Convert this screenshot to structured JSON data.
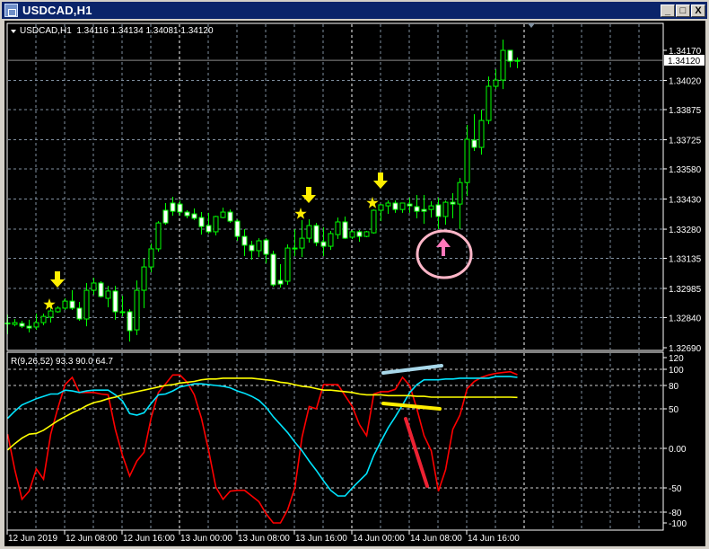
{
  "window": {
    "title": "USDCAD,H1",
    "buttons": {
      "minimize": "_",
      "maximize": "□",
      "close": "X"
    }
  },
  "main_chart": {
    "header": "USDCAD,H1  1.34116 1.34134 1.34081 1.34120",
    "symbol": "USDCAD",
    "timeframe": "H1",
    "current_price_label": "1.34120",
    "price_ticks": [
      "1.34170",
      "1.34020",
      "1.33875",
      "1.33725",
      "1.33580",
      "1.33430",
      "1.33280",
      "1.33135",
      "1.32985",
      "1.32840",
      "1.32690"
    ],
    "colors": {
      "background": "#000000",
      "bull_outline": "#00ff00",
      "bear_body": "#ffffff",
      "grid": "#8090a0",
      "arrow": "#ffee00",
      "star": "#ffee00",
      "up_arrow": "#ff77bb",
      "circle": "#ffb6c8"
    }
  },
  "chart_data": [
    {
      "type": "candlestick",
      "title": "USDCAD,H1",
      "x_start": "12 Jun 2019 00:00",
      "bar_interval": "1h",
      "ylim": [
        1.3269,
        1.3417
      ],
      "grid": true,
      "ohlc_format": [
        "open",
        "high",
        "low",
        "close"
      ],
      "candles": [
        [
          1.32811,
          1.32855,
          1.32757,
          1.32813
        ],
        [
          1.32806,
          1.32833,
          1.32797,
          1.32815
        ],
        [
          1.32811,
          1.32824,
          1.32788,
          1.32797
        ],
        [
          1.32797,
          1.32829,
          1.32766,
          1.32788
        ],
        [
          1.32793,
          1.3286,
          1.32779,
          1.32815
        ],
        [
          1.32815,
          1.3286,
          1.32802,
          1.32846
        ],
        [
          1.32842,
          1.32914,
          1.32815,
          1.32873
        ],
        [
          1.32869,
          1.32896,
          1.32864,
          1.32887
        ],
        [
          1.32887,
          1.32936,
          1.32878,
          1.32922
        ],
        [
          1.32922,
          1.32976,
          1.32878,
          1.32887
        ],
        [
          1.32887,
          1.32918,
          1.32824,
          1.32833
        ],
        [
          1.32833,
          1.33012,
          1.32797,
          1.32976
        ],
        [
          1.32976,
          1.33039,
          1.32954,
          1.33012
        ],
        [
          1.33012,
          1.33021,
          1.3294,
          1.32945
        ],
        [
          1.32936,
          1.32998,
          1.32891,
          1.32972
        ],
        [
          1.32972,
          1.32998,
          1.32829,
          1.32869
        ],
        [
          1.32869,
          1.32949,
          1.32846,
          1.32869
        ],
        [
          1.32869,
          1.32882,
          1.32721,
          1.32775
        ],
        [
          1.32779,
          1.33025,
          1.32753,
          1.32976
        ],
        [
          1.32976,
          1.33133,
          1.32887,
          1.33092
        ],
        [
          1.33092,
          1.33209,
          1.33065,
          1.33182
        ],
        [
          1.33182,
          1.3332,
          1.33168,
          1.33311
        ],
        [
          1.33374,
          1.3341,
          1.33302,
          1.33311
        ],
        [
          1.3341,
          1.33441,
          1.33347,
          1.33369
        ],
        [
          1.33405,
          1.33423,
          1.33347,
          1.33365
        ],
        [
          1.33365,
          1.33374,
          1.33334,
          1.33347
        ],
        [
          1.33356,
          1.33383,
          1.33325,
          1.33334
        ],
        [
          1.33338,
          1.33365,
          1.33253,
          1.33293
        ],
        [
          1.33298,
          1.33361,
          1.33258,
          1.33267
        ],
        [
          1.33267,
          1.33347,
          1.33249,
          1.33343
        ],
        [
          1.33338,
          1.33387,
          1.33334,
          1.33365
        ],
        [
          1.33365,
          1.33378,
          1.33311,
          1.3332
        ],
        [
          1.3332,
          1.33329,
          1.33222,
          1.33244
        ],
        [
          1.33244,
          1.3328,
          1.33146,
          1.332
        ],
        [
          1.332,
          1.33222,
          1.33128,
          1.33173
        ],
        [
          1.33173,
          1.33235,
          1.33141,
          1.33222
        ],
        [
          1.33226,
          1.33235,
          1.3311,
          1.33155
        ],
        [
          1.33155,
          1.33173,
          1.32994,
          1.33003
        ],
        [
          1.33025,
          1.33106,
          1.32989,
          1.33007
        ],
        [
          1.33021,
          1.33204,
          1.33003,
          1.33186
        ],
        [
          1.33186,
          1.3328,
          1.33146,
          1.33186
        ],
        [
          1.33186,
          1.33325,
          1.33141,
          1.33235
        ],
        [
          1.33235,
          1.33329,
          1.33213,
          1.33298
        ],
        [
          1.33298,
          1.33311,
          1.33195,
          1.33213
        ],
        [
          1.33217,
          1.33289,
          1.33146,
          1.33195
        ],
        [
          1.33195,
          1.33271,
          1.33177,
          1.33258
        ],
        [
          1.33253,
          1.33338,
          1.33231,
          1.33316
        ],
        [
          1.33316,
          1.33343,
          1.33231,
          1.33235
        ],
        [
          1.3324,
          1.33276,
          1.33231,
          1.33267
        ],
        [
          1.33267,
          1.33276,
          1.33217,
          1.33244
        ],
        [
          1.33244,
          1.33271,
          1.3324,
          1.33267
        ],
        [
          1.33262,
          1.33378,
          1.33258,
          1.33374
        ],
        [
          1.33374,
          1.33405,
          1.3332,
          1.33401
        ],
        [
          1.33396,
          1.33423,
          1.33356,
          1.3341
        ],
        [
          1.3341,
          1.33423,
          1.33361,
          1.33378
        ],
        [
          1.33378,
          1.3341,
          1.33361,
          1.3341
        ],
        [
          1.33405,
          1.33436,
          1.33361,
          1.33396
        ],
        [
          1.33392,
          1.3345,
          1.33334,
          1.33369
        ],
        [
          1.33378,
          1.3345,
          1.33307,
          1.33369
        ],
        [
          1.33378,
          1.33419,
          1.33338,
          1.33396
        ],
        [
          1.33401,
          1.33436,
          1.3328,
          1.33343
        ],
        [
          1.33343,
          1.33423,
          1.33302,
          1.33414
        ],
        [
          1.33414,
          1.33459,
          1.33334,
          1.33405
        ],
        [
          1.33405,
          1.33535,
          1.3328,
          1.33512
        ],
        [
          1.33512,
          1.33799,
          1.33445,
          1.33727
        ],
        [
          1.33723,
          1.33852,
          1.33669,
          1.33687
        ],
        [
          1.33687,
          1.33875,
          1.33651,
          1.33821
        ],
        [
          1.33821,
          1.3404,
          1.33803,
          1.33991
        ],
        [
          1.33991,
          1.34076,
          1.33977,
          1.34022
        ],
        [
          1.34022,
          1.34223,
          1.33977,
          1.3417
        ],
        [
          1.3417,
          1.3417,
          1.34085,
          1.34116
        ],
        [
          1.34116,
          1.34134,
          1.34081,
          1.3412
        ]
      ]
    },
    {
      "type": "line",
      "title": "R(9,26,52) 93.3 90.0 64.7",
      "x_start": "12 Jun 2019 00:00",
      "bar_interval": "1h",
      "ylim": [
        -100,
        120
      ],
      "y_ticks": [
        "120",
        "100",
        "80",
        "50",
        "0.00",
        "-50",
        "-80",
        "-100"
      ],
      "x_tick_labels": [
        "12 Jun 2019",
        "12 Jun 08:00",
        "12 Jun 16:00",
        "13 Jun 00:00",
        "13 Jun 08:00",
        "13 Jun 16:00",
        "14 Jun 00:00",
        "14 Jun 08:00",
        "14 Jun 16:00"
      ],
      "grid": true,
      "series": [
        {
          "color": "#ff0000",
          "values": [
            18,
            -27,
            -64,
            -54,
            -26,
            -39,
            18,
            51,
            81,
            90,
            71,
            71,
            71,
            69,
            68,
            24,
            -9,
            -35,
            -16,
            -5,
            39,
            71,
            82,
            93,
            93,
            84,
            68,
            38,
            -3,
            -49,
            -64,
            -54,
            -53,
            -53,
            -60,
            -67,
            -83,
            -100,
            -100,
            -77,
            -50,
            14,
            53,
            50,
            81,
            81,
            81,
            67,
            53,
            30,
            16,
            69,
            72,
            72,
            75,
            90,
            80,
            50,
            16,
            -3,
            -54,
            -27,
            24,
            42,
            76,
            85,
            90,
            93,
            95,
            96,
            97,
            93.3
          ]
        },
        {
          "color": "#00e5ff",
          "values": [
            38,
            47,
            55,
            59,
            63,
            66,
            69,
            69,
            74,
            73,
            71,
            73,
            74,
            74,
            74,
            68,
            60,
            44,
            42,
            45,
            57,
            68,
            69,
            73,
            78,
            80,
            82,
            82,
            81,
            80,
            79,
            77,
            73,
            70,
            66,
            61,
            52,
            40,
            30,
            20,
            8,
            -3,
            -16,
            -28,
            -41,
            -53,
            -60,
            -60,
            -50,
            -41,
            -32,
            -9,
            9,
            26,
            40,
            55,
            71,
            81,
            87,
            87,
            87,
            88,
            88,
            89,
            89,
            89,
            89,
            89,
            91,
            91,
            91,
            90.0
          ]
        },
        {
          "color": "#ffff00",
          "values": [
            -2,
            6,
            13,
            18,
            19,
            23,
            29,
            35,
            40,
            45,
            49,
            54,
            58,
            60,
            63,
            65,
            68,
            70,
            72,
            74,
            76,
            78,
            80,
            81,
            83,
            84,
            85,
            87,
            88,
            88,
            89,
            89,
            89,
            89,
            89,
            88,
            87,
            86,
            84,
            83,
            81,
            79,
            78,
            76,
            74,
            74,
            73,
            72,
            71,
            69,
            68,
            68,
            68,
            67,
            67,
            67,
            67,
            66,
            66,
            65,
            65,
            65,
            65,
            65,
            65,
            65,
            65,
            65,
            65,
            65,
            65,
            64.7
          ]
        }
      ],
      "drawn_lines": [
        {
          "color": "#a8d8ea"
        },
        {
          "color": "#ffee00"
        },
        {
          "color": "#ee2233"
        }
      ]
    }
  ]
}
